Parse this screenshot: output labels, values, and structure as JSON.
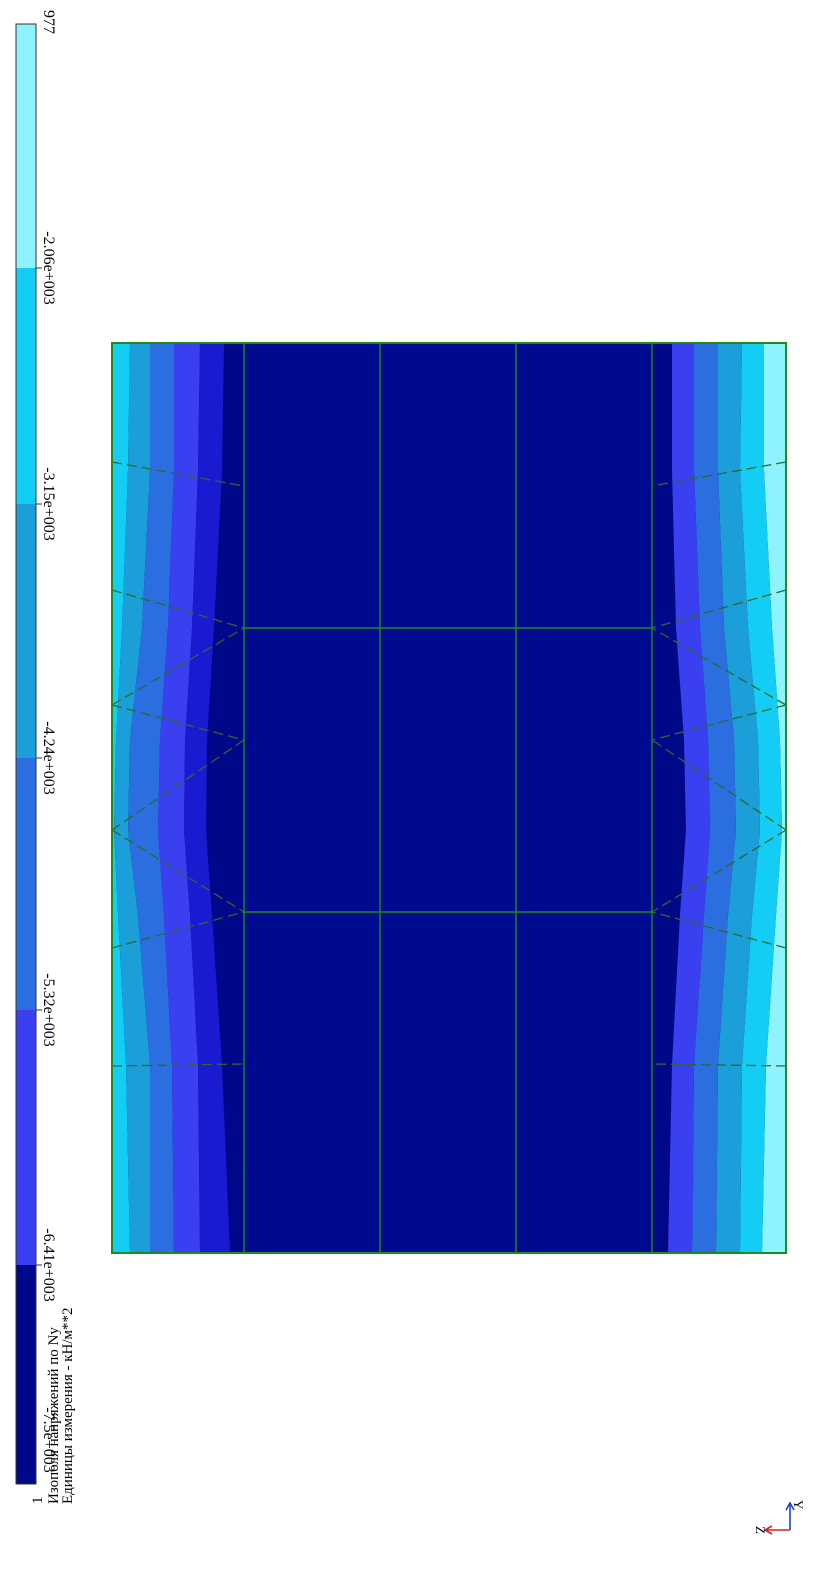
{
  "scale": {
    "top_label": "977",
    "tick_labels": [
      "-2.06e+003",
      "-3.15e+003",
      "-4.24e+003",
      "-5.32e+003",
      "-6.41e+003",
      "-7.5e+003"
    ],
    "band_colors": [
      "#8ff2ff",
      "#14cdf5",
      "#1c9ed8",
      "#2a6ee0",
      "#3a3ff0",
      "#00088a"
    ]
  },
  "caption": {
    "number": "1",
    "line1": "Изополя напряжений по Ny",
    "line2": "Единицы измерения - кН/м**2"
  },
  "axes": {
    "z_label": "Z",
    "y_label": "Y"
  },
  "plot": {
    "mesh_color": "#1f8a1f",
    "dashed_color": "#2a6b2a",
    "core_color": "#000a8f"
  }
}
